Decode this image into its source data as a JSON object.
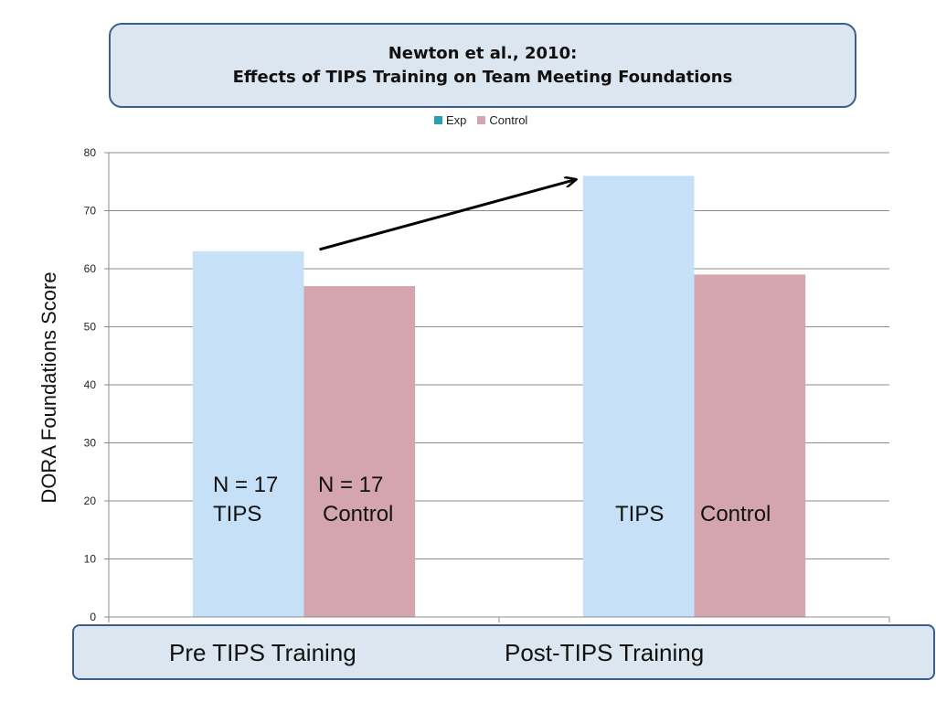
{
  "colors": {
    "exp": "#c6e0f7",
    "control": "#d4a5ad",
    "legend_exp": "#2aa0b8",
    "legend_control": "#d4a5ad",
    "box_fill": "#dce6f0",
    "box_border": "#3a5f8c"
  },
  "annotations": {
    "pre_exp_n": "N = 17",
    "pre_exp_label": "TIPS",
    "pre_ctrl_n": "N = 17",
    "pre_ctrl_label": "Control",
    "post_exp_label": "TIPS",
    "post_ctrl_label": "Control"
  },
  "chart_data": {
    "type": "bar",
    "title": "Newton et al., 2010:",
    "subtitle": "Effects of TIPS Training on Team Meeting Foundations",
    "categories": [
      "Pre TIPS Training",
      "Post-TIPS Training"
    ],
    "series": [
      {
        "name": "Exp",
        "values": [
          63,
          76
        ]
      },
      {
        "name": "Control",
        "values": [
          57,
          59
        ]
      }
    ],
    "xlabel": "",
    "ylabel": "DORA Foundations Score",
    "ylim": [
      0,
      80
    ],
    "yticks": [
      0,
      10,
      20,
      30,
      40,
      50,
      60,
      70,
      80
    ],
    "grid": true,
    "legend": "top-center",
    "arrow": {
      "from_category": 0,
      "to_category": 1,
      "series": "Exp"
    }
  }
}
